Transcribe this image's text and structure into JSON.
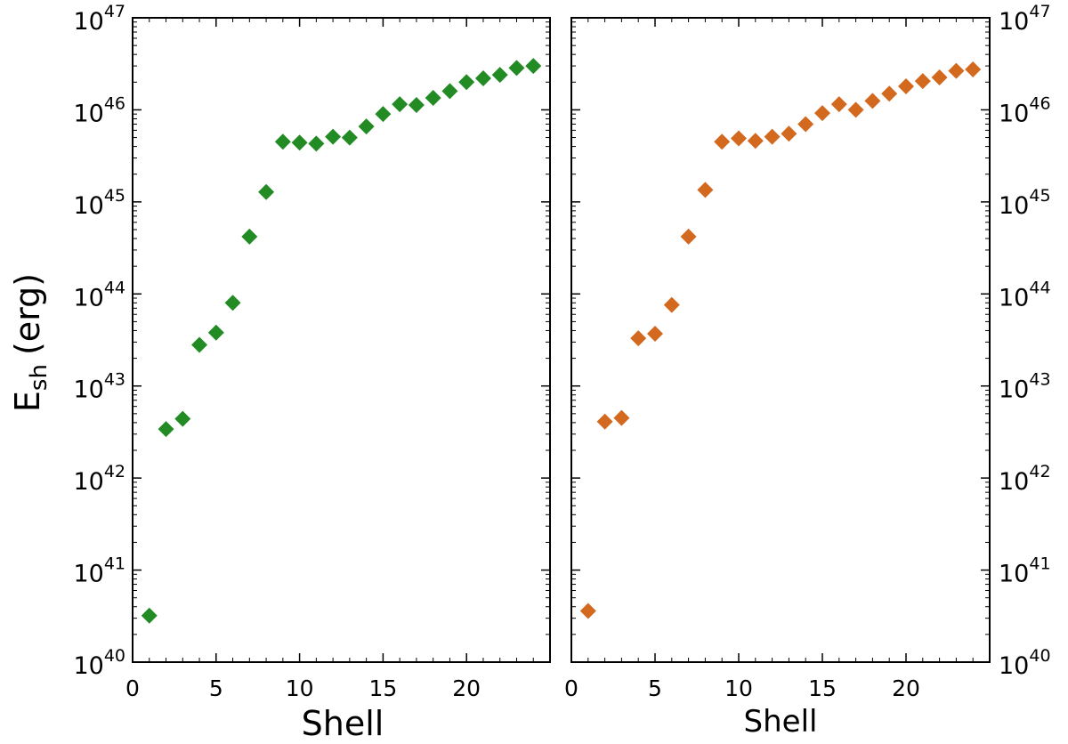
{
  "chart_data": [
    {
      "type": "scatter",
      "panel": "left",
      "xlabel": "Shell",
      "ylabel_main": "E",
      "ylabel_sub": "sh",
      "ylabel_unit": "(erg)",
      "xlim": [
        0,
        25
      ],
      "ylim": [
        1e+40,
        1e+47
      ],
      "yscale": "log",
      "xticks": [
        0,
        5,
        10,
        15,
        20
      ],
      "yticks": [
        {
          "base": "10",
          "exp": "40",
          "value": 1e+40
        },
        {
          "base": "10",
          "exp": "41",
          "value": 1e+41
        },
        {
          "base": "10",
          "exp": "42",
          "value": 1e+42
        },
        {
          "base": "10",
          "exp": "43",
          "value": 1e+43
        },
        {
          "base": "10",
          "exp": "44",
          "value": 1e+44
        },
        {
          "base": "10",
          "exp": "45",
          "value": 1e+45
        },
        {
          "base": "10",
          "exp": "46",
          "value": 1e+46
        },
        {
          "base": "10",
          "exp": "47",
          "value": 1e+47
        }
      ],
      "marker": "diamond",
      "color": "#238b23",
      "x": [
        1,
        2,
        3,
        4,
        5,
        6,
        7,
        8,
        9,
        10,
        11,
        12,
        13,
        14,
        15,
        16,
        17,
        18,
        19,
        20,
        21,
        22,
        23,
        24
      ],
      "y": [
        3.2e+40,
        3.4e+42,
        4.4e+42,
        2.8e+43,
        3.8e+43,
        8e+43,
        4.2e+44,
        1.28e+45,
        4.5e+45,
        4.4e+45,
        4.3e+45,
        5.1e+45,
        5e+45,
        6.6e+45,
        9e+45,
        1.15e+46,
        1.13e+46,
        1.35e+46,
        1.6e+46,
        2e+46,
        2.2e+46,
        2.4e+46,
        2.85e+46,
        3e+46
      ]
    },
    {
      "type": "scatter",
      "panel": "right",
      "xlabel": "Shell",
      "xlim": [
        0,
        25
      ],
      "ylim": [
        1e+40,
        1e+47
      ],
      "yscale": "log",
      "xticks": [
        0,
        5,
        10,
        15,
        20
      ],
      "yticks": [
        {
          "base": "10",
          "exp": "40",
          "value": 1e+40
        },
        {
          "base": "10",
          "exp": "41",
          "value": 1e+41
        },
        {
          "base": "10",
          "exp": "42",
          "value": 1e+42
        },
        {
          "base": "10",
          "exp": "43",
          "value": 1e+43
        },
        {
          "base": "10",
          "exp": "44",
          "value": 1e+44
        },
        {
          "base": "10",
          "exp": "45",
          "value": 1e+45
        },
        {
          "base": "10",
          "exp": "46",
          "value": 1e+46
        },
        {
          "base": "10",
          "exp": "47",
          "value": 1e+47
        }
      ],
      "marker": "diamond",
      "color": "#d2691e",
      "x": [
        1,
        2,
        3,
        4,
        5,
        6,
        7,
        8,
        9,
        10,
        11,
        12,
        13,
        14,
        15,
        16,
        17,
        18,
        19,
        20,
        21,
        22,
        23,
        24
      ],
      "y": [
        3.6e+40,
        4.1e+42,
        4.5e+42,
        3.3e+43,
        3.7e+43,
        7.6e+43,
        4.2e+44,
        1.35e+45,
        4.5e+45,
        4.9e+45,
        4.6e+45,
        5.1e+45,
        5.5e+45,
        7e+45,
        9.2e+45,
        1.15e+46,
        1e+46,
        1.25e+46,
        1.5e+46,
        1.8e+46,
        2.05e+46,
        2.25e+46,
        2.65e+46,
        2.75e+46
      ]
    }
  ]
}
